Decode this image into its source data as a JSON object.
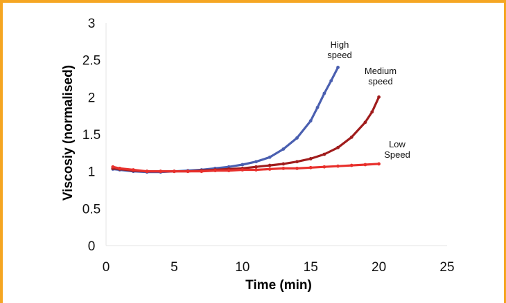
{
  "chart_data": {
    "type": "scatter",
    "title": "",
    "xlabel": "Time (min)",
    "ylabel": "Viscosiy (normalised)",
    "xlim": [
      0,
      25
    ],
    "ylim": [
      0,
      3
    ],
    "xticks": [
      "0",
      "5",
      "10",
      "15",
      "20",
      "25"
    ],
    "yticks": [
      "0",
      "0.5",
      "1",
      "1.5",
      "2",
      "2.5",
      "3"
    ],
    "grid": false,
    "series": [
      {
        "name": "High speed",
        "color": "#4a5fb0",
        "x": [
          0.5,
          1,
          2,
          3,
          4,
          5,
          6,
          7,
          8,
          9,
          10,
          11,
          12,
          13,
          14,
          15,
          15.5,
          16,
          16.5,
          17
        ],
        "y": [
          1.03,
          1.02,
          1.0,
          0.99,
          0.99,
          1.0,
          1.01,
          1.02,
          1.04,
          1.06,
          1.09,
          1.13,
          1.19,
          1.3,
          1.45,
          1.68,
          1.86,
          2.05,
          2.22,
          2.4
        ]
      },
      {
        "name": "Medium speed",
        "color": "#a01c1c",
        "x": [
          0.5,
          1,
          2,
          3,
          4,
          5,
          6,
          7,
          8,
          9,
          10,
          11,
          12,
          13,
          14,
          15,
          16,
          17,
          18,
          19,
          19.5,
          20
        ],
        "y": [
          1.04,
          1.03,
          1.01,
          1.0,
          1.0,
          1.0,
          1.0,
          1.01,
          1.02,
          1.03,
          1.04,
          1.06,
          1.08,
          1.1,
          1.13,
          1.17,
          1.23,
          1.32,
          1.46,
          1.66,
          1.8,
          2.0
        ]
      },
      {
        "name": "Low Speed",
        "color": "#e8302c",
        "x": [
          0.5,
          1,
          2,
          3,
          4,
          5,
          6,
          7,
          8,
          9,
          10,
          11,
          12,
          13,
          14,
          15,
          16,
          17,
          18,
          19,
          20
        ],
        "y": [
          1.06,
          1.04,
          1.02,
          1.0,
          1.0,
          1.0,
          1.0,
          1.0,
          1.01,
          1.01,
          1.02,
          1.02,
          1.03,
          1.04,
          1.04,
          1.05,
          1.06,
          1.07,
          1.08,
          1.09,
          1.1
        ]
      }
    ],
    "annotations": [
      {
        "lines": [
          "High",
          "speed"
        ],
        "series": "High speed"
      },
      {
        "lines": [
          "Medium",
          "speed"
        ],
        "series": "Medium speed"
      },
      {
        "lines": [
          "Low",
          "Speed"
        ],
        "series": "Low Speed"
      }
    ]
  }
}
